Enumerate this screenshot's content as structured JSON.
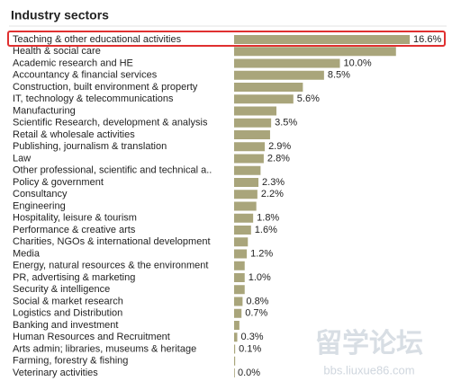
{
  "chart_data": {
    "type": "bar",
    "orientation": "horizontal",
    "title": "Industry sectors",
    "color": "#a9a57b",
    "categories": [
      "Teaching & other educational activities",
      "Health & social care",
      "Academic research and HE",
      "Accountancy & financial services",
      "Construction, built environment & property",
      "IT, technology & telecommunications",
      "Manufacturing",
      "Scientific Research, development & analysis",
      "Retail & wholesale activities",
      "Publishing, journalism & translation",
      "Law",
      "Other professional, scientific and technical a..",
      "Policy & government",
      "Consultancy",
      "Engineering",
      "Hospitality, leisure & tourism",
      "Performance & creative arts",
      "Charities, NGOs & international development",
      "Media",
      "Energy, natural resources & the environment",
      "PR, advertising & marketing",
      "Security & intelligence",
      "Social & market research",
      "Logistics and Distribution",
      "Banking and investment",
      "Human Resources and Recruitment",
      "Arts admin; libraries, museums & heritage",
      "Farming, forestry & fishing",
      "Veterinary activities"
    ],
    "values": [
      16.6,
      15.3,
      10.0,
      8.5,
      6.5,
      5.6,
      4.0,
      3.5,
      3.4,
      2.9,
      2.8,
      2.5,
      2.3,
      2.2,
      2.1,
      1.8,
      1.6,
      1.3,
      1.2,
      1.0,
      1.0,
      1.0,
      0.8,
      0.7,
      0.5,
      0.3,
      0.1,
      0.1,
      0.0
    ],
    "value_labels": [
      "16.6%",
      null,
      "10.0%",
      "8.5%",
      null,
      "5.6%",
      null,
      "3.5%",
      null,
      "2.9%",
      "2.8%",
      null,
      "2.3%",
      "2.2%",
      null,
      "1.8%",
      "1.6%",
      null,
      "1.2%",
      null,
      "1.0%",
      null,
      "0.8%",
      "0.7%",
      null,
      "0.3%",
      "0.1%",
      null,
      "0.0%"
    ]
  },
  "watermark": {
    "title": "留学论坛",
    "url": "bbs.liuxue86.com"
  }
}
